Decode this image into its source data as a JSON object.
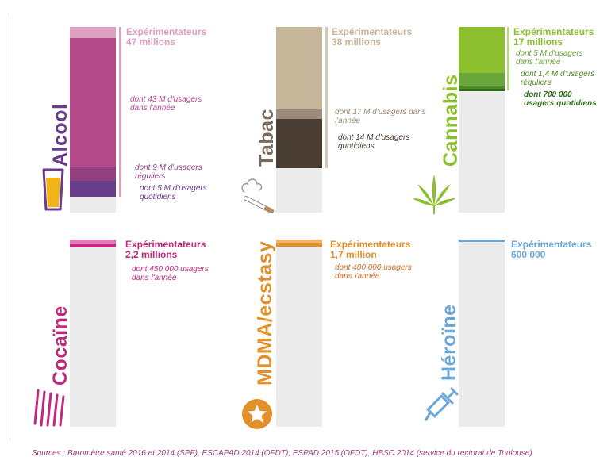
{
  "colors": {
    "alcool": "#b44a88",
    "alcool_dark": "#6a3c8c",
    "tabac": "#c7b79a",
    "tabac_dark": "#4a3d34",
    "cannabis": "#8cbf2e",
    "cannabis_dark": "#4e8a26",
    "cocaine": "#c0297e",
    "mdma": "#e2902b",
    "heroine": "#6aa7d8",
    "track": "#ebebeb",
    "sources": "#9b3d78"
  },
  "chart_data": [
    {
      "type": "bar",
      "name": "Alcool",
      "icon": "beer-glass-icon",
      "title_label": "Expérimentateurs",
      "title_value": "47 millions",
      "values_millions": {
        "experimentateurs": 47,
        "usagers_annee": 43,
        "usagers_reguliers": 9,
        "usagers_quotidiens": 5
      },
      "notes": [
        "dont 43 M d'usagers dans l'année",
        "dont 9 M d'usagers réguliers",
        "dont 5 M d'usagers quotidiens"
      ]
    },
    {
      "type": "bar",
      "name": "Tabac",
      "icon": "cigarette-icon",
      "title_label": "Expérimentateurs",
      "title_value": "38 millions",
      "values_millions": {
        "experimentateurs": 38,
        "usagers_annee": 17,
        "usagers_quotidiens": 14
      },
      "notes": [
        "dont 17 M d'usagers dans l'année",
        "dont 14 M d'usagers quotidiens"
      ]
    },
    {
      "type": "bar",
      "name": "Cannabis",
      "icon": "cannabis-leaf-icon",
      "title_label": "Expérimentateurs",
      "title_value": "17 millions",
      "values_millions": {
        "experimentateurs": 17,
        "usagers_annee": 5,
        "usagers_reguliers": 1.4,
        "usagers_quotidiens": 0.7
      },
      "notes": [
        "dont 5 M d'usagers dans l'année",
        "dont 1,4 M d'usagers réguliers",
        "dont 700 000 usagers quotidiens"
      ]
    },
    {
      "type": "bar",
      "name": "Cocaïne",
      "icon": "cocaine-lines-icon",
      "title_label": "Expérimentateurs",
      "title_value": "2,2 millions",
      "values_millions": {
        "experimentateurs": 2.2,
        "usagers_annee": 0.45
      },
      "notes": [
        "dont 450 000 usagers dans l'année"
      ]
    },
    {
      "type": "bar",
      "name": "MDMA/ecstasy",
      "icon": "star-pill-icon",
      "title_label": "Expérimentateurs",
      "title_value": "1,7 million",
      "values_millions": {
        "experimentateurs": 1.7,
        "usagers_annee": 0.4
      },
      "notes": [
        "dont 400 000 usagers dans l'année"
      ]
    },
    {
      "type": "bar",
      "name": "Héroïne",
      "icon": "syringe-icon",
      "title_label": "Expérimentateurs",
      "title_value": "600 000",
      "values_millions": {
        "experimentateurs": 0.6
      },
      "notes": []
    }
  ],
  "sources": "Sources : Baromètre santé 2016 et 2014 (SPF), ESCAPAD 2014 (OFDT), ESPAD 2015 (OFDT), HBSC 2014 (service du rectorat de Toulouse)"
}
